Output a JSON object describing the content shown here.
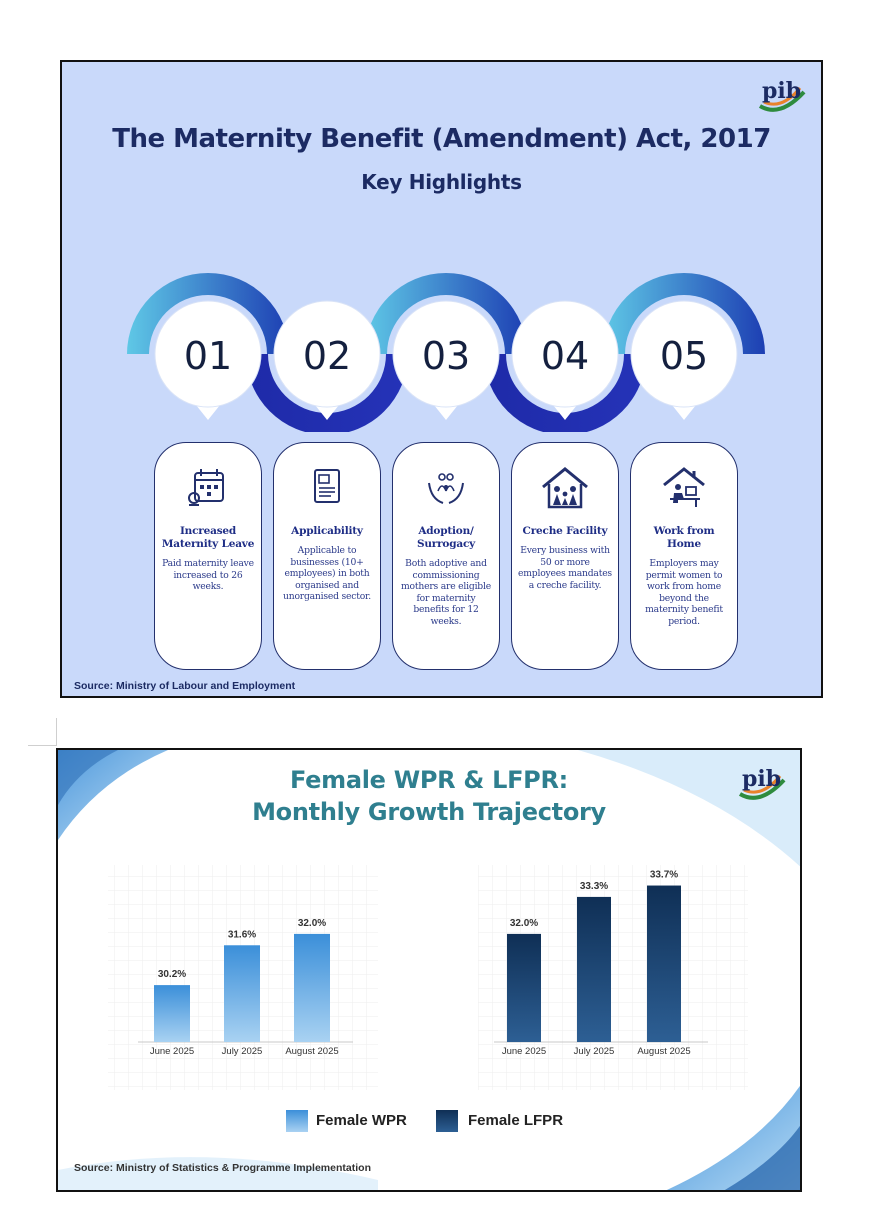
{
  "panel1": {
    "title": "The Maternity Benefit (Amendment) Act, 2017",
    "subtitle": "Key Highlights",
    "logo_text": "pib",
    "steps": [
      {
        "number": "01",
        "icon": "calendar-icon",
        "title": "Increased Maternity Leave",
        "text": "Paid maternity leave increased to 26 weeks."
      },
      {
        "number": "02",
        "icon": "document-icon",
        "title": "Applicability",
        "text": "Applicable to businesses (10+ employees) in both organised and unorganised sector."
      },
      {
        "number": "03",
        "icon": "hands-family-icon",
        "title": "Adoption/ Surrogacy",
        "text": "Both adoptive and commissioning mothers are eligible for maternity benefits for 12 weeks."
      },
      {
        "number": "04",
        "icon": "house-family-icon",
        "title": "Creche Facility",
        "text": "Every business with 50 or more employees mandates a creche facility."
      },
      {
        "number": "05",
        "icon": "home-office-icon",
        "title": "Work from Home",
        "text": "Employers may permit women to work from home beyond the maternity benefit period."
      }
    ],
    "source": "Source: Ministry of Labour and Employment"
  },
  "panel2": {
    "title_line1": "Female WPR & LFPR:",
    "title_line2": "Monthly Growth Trajectory",
    "logo_text": "pib",
    "source": "Source: Ministry of Statistics & Programme Implementation"
  },
  "chart_data": [
    {
      "type": "bar",
      "categories": [
        "June 2025",
        "July 2025",
        "August 2025"
      ],
      "series": [
        {
          "name": "Female WPR",
          "values": [
            30.2,
            31.6,
            32.0
          ],
          "labels": [
            "30.2%",
            "31.6%",
            "32.0%"
          ]
        }
      ],
      "ylim": [
        28.2,
        34.0
      ],
      "color": "#3b8fd9"
    },
    {
      "type": "bar",
      "categories": [
        "June 2025",
        "July 2025",
        "August 2025"
      ],
      "series": [
        {
          "name": "Female LFPR",
          "values": [
            32.0,
            33.3,
            33.7
          ],
          "labels": [
            "32.0%",
            "33.3%",
            "33.7%"
          ]
        }
      ],
      "ylim": [
        28.2,
        34.0
      ],
      "color": "#133a63"
    }
  ],
  "legend": [
    {
      "label": "Female WPR",
      "color": "#3b8fd9"
    },
    {
      "label": "Female LFPR",
      "color": "#133a63"
    }
  ]
}
